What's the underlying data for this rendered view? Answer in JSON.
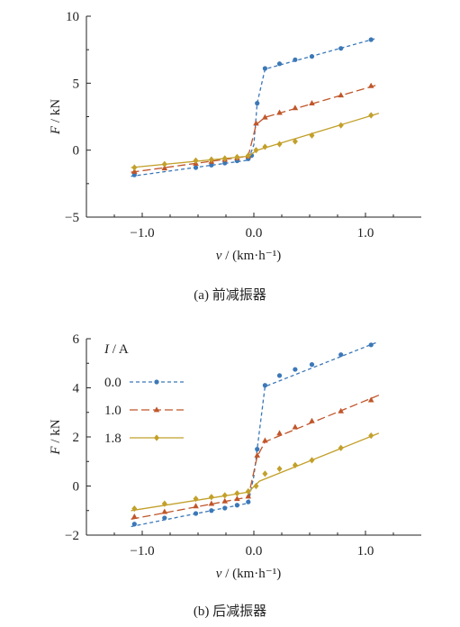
{
  "colors": {
    "series_0_0": "#3b78b8",
    "series_1_0": "#c0562a",
    "series_1_8": "#c2a02a",
    "axis": "#222222"
  },
  "chart_data": [
    {
      "type": "line",
      "caption": "(a)  前减振器",
      "ylabel_italic": "F",
      "ylabel_unit": " / kN",
      "xlabel_italic": "v",
      "xlabel_unit": " / (km·h⁻¹)",
      "xlim": [
        -1.5,
        1.5
      ],
      "ylim": [
        -5,
        10
      ],
      "xticks": [
        -1.0,
        0.0,
        1.0
      ],
      "xtick_labels": [
        "−1.0",
        "0.0",
        "1.0"
      ],
      "yticks": [
        -5,
        0,
        5,
        10
      ],
      "ytick_labels": [
        "−5",
        "0",
        "5",
        "10"
      ],
      "series": [
        {
          "name": "0.0",
          "marker": "circle",
          "dash": "dashed-short",
          "points": [
            [
              -1.07,
              -1.85
            ],
            [
              -0.52,
              -1.3
            ],
            [
              -0.38,
              -1.12
            ],
            [
              -0.26,
              -0.97
            ],
            [
              -0.15,
              -0.8
            ],
            [
              -0.05,
              -0.65
            ],
            [
              -0.02,
              -0.4
            ],
            [
              0.03,
              3.5
            ],
            [
              0.1,
              6.1
            ],
            [
              0.23,
              6.45
            ],
            [
              0.37,
              6.75
            ],
            [
              0.52,
              7.0
            ],
            [
              0.78,
              7.6
            ],
            [
              1.05,
              8.25
            ]
          ],
          "line": [
            [
              -1.1,
              -1.95
            ],
            [
              -0.05,
              -0.75
            ],
            [
              0.0,
              0.4
            ],
            [
              0.03,
              3.5
            ],
            [
              0.1,
              6.05
            ],
            [
              1.1,
              8.35
            ]
          ]
        },
        {
          "name": "1.0",
          "marker": "triangle",
          "dash": "dashed-long",
          "points": [
            [
              -1.07,
              -1.6
            ],
            [
              -0.8,
              -1.35
            ],
            [
              -0.52,
              -1.0
            ],
            [
              -0.38,
              -0.85
            ],
            [
              -0.26,
              -0.7
            ],
            [
              -0.15,
              -0.58
            ],
            [
              -0.05,
              -0.45
            ],
            [
              0.02,
              2.0
            ],
            [
              0.1,
              2.45
            ],
            [
              0.23,
              2.8
            ],
            [
              0.37,
              3.15
            ],
            [
              0.52,
              3.5
            ],
            [
              0.78,
              4.1
            ],
            [
              1.05,
              4.8
            ]
          ],
          "line": [
            [
              -1.1,
              -1.65
            ],
            [
              -0.05,
              -0.45
            ],
            [
              0.02,
              1.9
            ],
            [
              0.1,
              2.45
            ],
            [
              1.12,
              4.9
            ]
          ]
        },
        {
          "name": "1.8",
          "marker": "diamond",
          "dash": "solid",
          "points": [
            [
              -1.07,
              -1.3
            ],
            [
              -0.8,
              -1.05
            ],
            [
              -0.52,
              -0.78
            ],
            [
              -0.38,
              -0.7
            ],
            [
              -0.26,
              -0.62
            ],
            [
              -0.15,
              -0.52
            ],
            [
              -0.05,
              -0.4
            ],
            [
              0.02,
              0.0
            ],
            [
              0.1,
              0.25
            ],
            [
              0.23,
              0.45
            ],
            [
              0.37,
              0.65
            ],
            [
              0.52,
              1.1
            ],
            [
              0.78,
              1.85
            ],
            [
              1.05,
              2.6
            ]
          ],
          "line": [
            [
              -1.1,
              -1.3
            ],
            [
              -0.05,
              -0.45
            ],
            [
              0.03,
              0.0
            ],
            [
              1.12,
              2.75
            ]
          ]
        }
      ]
    },
    {
      "type": "line",
      "caption": "(b)  后减振器",
      "ylabel_italic": "F",
      "ylabel_unit": " / kN",
      "xlabel_italic": "v",
      "xlabel_unit": " / (km·h⁻¹)",
      "xlim": [
        -1.5,
        1.5
      ],
      "ylim": [
        -2,
        6
      ],
      "xticks": [
        -1.0,
        0.0,
        1.0
      ],
      "xtick_labels": [
        "−1.0",
        "0.0",
        "1.0"
      ],
      "yticks": [
        -2,
        0,
        2,
        4,
        6
      ],
      "ytick_labels": [
        "−2",
        "0",
        "2",
        "4",
        "6"
      ],
      "legend_title_italic": "I",
      "legend_title_unit": " / A",
      "legend_position": "top-left",
      "series": [
        {
          "name": "0.0",
          "marker": "circle",
          "dash": "dashed-short",
          "points": [
            [
              -1.07,
              -1.55
            ],
            [
              -0.8,
              -1.3
            ],
            [
              -0.52,
              -1.12
            ],
            [
              -0.38,
              -1.0
            ],
            [
              -0.26,
              -0.9
            ],
            [
              -0.15,
              -0.78
            ],
            [
              -0.05,
              -0.65
            ],
            [
              0.03,
              1.5
            ],
            [
              0.1,
              4.1
            ],
            [
              0.23,
              4.5
            ],
            [
              0.37,
              4.75
            ],
            [
              0.52,
              4.95
            ],
            [
              0.78,
              5.35
            ],
            [
              1.05,
              5.75
            ]
          ],
          "line": [
            [
              -1.1,
              -1.65
            ],
            [
              -0.05,
              -0.7
            ],
            [
              0.0,
              0.4
            ],
            [
              0.03,
              1.5
            ],
            [
              0.1,
              4.05
            ],
            [
              1.1,
              5.85
            ]
          ]
        },
        {
          "name": "1.0",
          "marker": "triangle",
          "dash": "dashed-long",
          "points": [
            [
              -1.07,
              -1.25
            ],
            [
              -0.8,
              -1.05
            ],
            [
              -0.52,
              -0.82
            ],
            [
              -0.38,
              -0.72
            ],
            [
              -0.26,
              -0.62
            ],
            [
              -0.15,
              -0.52
            ],
            [
              -0.05,
              -0.42
            ],
            [
              0.03,
              1.25
            ],
            [
              0.1,
              1.85
            ],
            [
              0.23,
              2.15
            ],
            [
              0.37,
              2.4
            ],
            [
              0.52,
              2.65
            ],
            [
              0.78,
              3.05
            ],
            [
              1.05,
              3.5
            ]
          ],
          "line": [
            [
              -1.1,
              -1.35
            ],
            [
              -0.05,
              -0.45
            ],
            [
              0.03,
              1.2
            ],
            [
              0.1,
              1.8
            ],
            [
              1.12,
              3.7
            ]
          ]
        },
        {
          "name": "1.8",
          "marker": "diamond",
          "dash": "solid",
          "points": [
            [
              -1.07,
              -0.92
            ],
            [
              -0.8,
              -0.72
            ],
            [
              -0.52,
              -0.52
            ],
            [
              -0.38,
              -0.45
            ],
            [
              -0.26,
              -0.38
            ],
            [
              -0.15,
              -0.3
            ],
            [
              -0.05,
              -0.22
            ],
            [
              0.02,
              0.0
            ],
            [
              0.1,
              0.5
            ],
            [
              0.23,
              0.7
            ],
            [
              0.37,
              0.85
            ],
            [
              0.52,
              1.05
            ],
            [
              0.78,
              1.55
            ],
            [
              1.05,
              2.05
            ]
          ],
          "line": [
            [
              -1.1,
              -1.0
            ],
            [
              -0.05,
              -0.25
            ],
            [
              0.05,
              0.2
            ],
            [
              1.12,
              2.15
            ]
          ]
        }
      ]
    }
  ]
}
